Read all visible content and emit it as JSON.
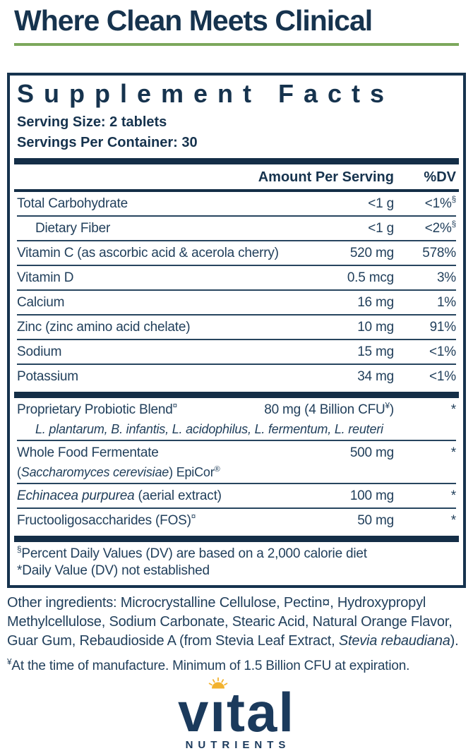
{
  "colors": {
    "navy": "#16334e",
    "green": "#7ca85c",
    "gold": "#f2b22e",
    "row_text": "#22405c"
  },
  "header": {
    "title": "Where Clean Meets Clinical"
  },
  "facts": {
    "title": "Supplement Facts",
    "serving_size": "Serving Size: 2 tablets",
    "servings_per_container": "Servings Per Container: 30",
    "columns": {
      "amount": "Amount Per Serving",
      "dv": "%DV"
    },
    "rows": [
      {
        "name": [
          {
            "t": "Total Carbohydrate"
          }
        ],
        "amount": [
          {
            "t": "<1 g"
          }
        ],
        "dv": [
          {
            "t": "<1%"
          },
          {
            "t": "§",
            "s": true
          }
        ]
      },
      {
        "indent": true,
        "name": [
          {
            "t": "Dietary Fiber"
          }
        ],
        "amount": [
          {
            "t": "<1 g"
          }
        ],
        "dv": [
          {
            "t": "<2%"
          },
          {
            "t": "§",
            "s": true
          }
        ]
      },
      {
        "name": [
          {
            "t": "Vitamin C (as ascorbic acid & acerola cherry)"
          }
        ],
        "amount": [
          {
            "t": "520 mg"
          }
        ],
        "dv": [
          {
            "t": "578%"
          }
        ]
      },
      {
        "name": [
          {
            "t": "Vitamin D"
          }
        ],
        "amount": [
          {
            "t": "0.5 mcg"
          }
        ],
        "dv": [
          {
            "t": "3%"
          }
        ]
      },
      {
        "name": [
          {
            "t": "Calcium"
          }
        ],
        "amount": [
          {
            "t": "16 mg"
          }
        ],
        "dv": [
          {
            "t": "1%"
          }
        ]
      },
      {
        "name": [
          {
            "t": "Zinc (zinc amino acid chelate)"
          }
        ],
        "amount": [
          {
            "t": "10 mg"
          }
        ],
        "dv": [
          {
            "t": "91%"
          }
        ]
      },
      {
        "name": [
          {
            "t": "Sodium"
          }
        ],
        "amount": [
          {
            "t": "15 mg"
          }
        ],
        "dv": [
          {
            "t": "<1%"
          }
        ]
      },
      {
        "name": [
          {
            "t": "Potassium"
          }
        ],
        "amount": [
          {
            "t": "34 mg"
          }
        ],
        "dv": [
          {
            "t": "<1%"
          }
        ],
        "bar_after": true,
        "no_sep": true
      },
      {
        "name": [
          {
            "t": "Proprietary Probiotic Blend"
          },
          {
            "t": "¤",
            "s": true
          }
        ],
        "amount": [
          {
            "t": "80 mg (4 Billion CFU"
          },
          {
            "t": "¥",
            "s": true
          },
          {
            "t": ")"
          }
        ],
        "dv": [
          {
            "t": "*"
          }
        ],
        "sub": [
          {
            "t": "L. plantarum, B. infantis, L. acidophilus, L. fermentum, L. reuteri",
            "i": true
          }
        ],
        "sub_indent": true
      },
      {
        "name": [
          {
            "t": "Whole Food Fermentate"
          }
        ],
        "amount": [
          {
            "t": "500 mg"
          }
        ],
        "dv": [
          {
            "t": "*"
          }
        ],
        "sub": [
          {
            "t": "("
          },
          {
            "t": "Saccharomyces cerevisiae",
            "i": true
          },
          {
            "t": ") EpiCor"
          },
          {
            "t": "®",
            "s": true
          }
        ]
      },
      {
        "name": [
          {
            "t": "Echinacea purpurea",
            "i": true
          },
          {
            "t": " (aerial extract)"
          }
        ],
        "amount": [
          {
            "t": "100 mg"
          }
        ],
        "dv": [
          {
            "t": "*"
          }
        ]
      },
      {
        "name": [
          {
            "t": "Fructooligosaccharides (FOS)"
          },
          {
            "t": "¤",
            "s": true
          }
        ],
        "amount": [
          {
            "t": "50 mg"
          }
        ],
        "dv": [
          {
            "t": "*"
          }
        ],
        "bar_after": true,
        "no_sep": true
      }
    ],
    "footnotes": [
      [
        {
          "t": "§",
          "s": true
        },
        {
          "t": "Percent Daily Values (DV) are based on a 2,000 calorie diet"
        }
      ],
      [
        {
          "t": "*"
        },
        {
          "t": "Daily Value (DV) not established"
        }
      ]
    ]
  },
  "other_ingredients": [
    {
      "t": "Other ingredients: Microcrystalline Cellulose, Pectin"
    },
    {
      "t": "¤"
    },
    {
      "t": ", Hydroxypropyl Methylcellulose, Sodium Carbonate, Stearic Acid, Natural Orange Flavor, Guar Gum, Rebaudioside A (from Stevia Leaf Extract, "
    },
    {
      "t": "Stevia rebaudiana",
      "i": true
    },
    {
      "t": ")."
    }
  ],
  "manufacture_note": [
    {
      "t": "¥",
      "s": true
    },
    {
      "t": "At the time of manufacture. Minimum of 1.5 Billion CFU at expiration."
    }
  ],
  "logo": {
    "word_pre": "v",
    "word_i": "ı",
    "word_post": "tal",
    "subtext": "NUTRIENTS"
  }
}
